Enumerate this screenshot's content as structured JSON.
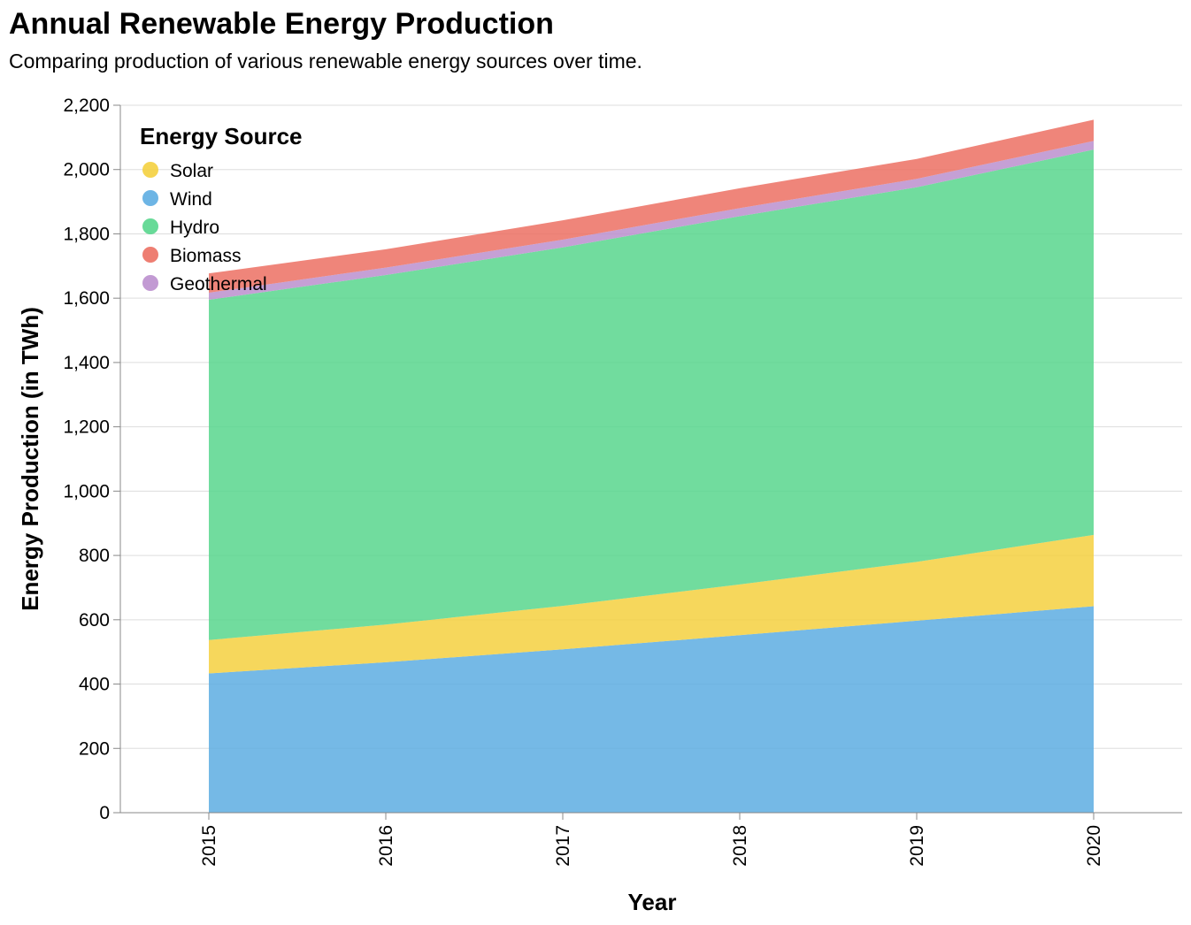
{
  "chart_data": {
    "type": "area",
    "stacked": true,
    "title": "Annual Renewable Energy Production",
    "subtitle": "Comparing production of various renewable energy sources over time.",
    "xlabel": "Year",
    "ylabel": "Energy Production (in TWh)",
    "x": [
      "2015",
      "2016",
      "2017",
      "2018",
      "2019",
      "2020"
    ],
    "ylim": [
      0,
      2200
    ],
    "yticks": [
      0,
      200,
      400,
      600,
      800,
      1000,
      1200,
      1400,
      1600,
      1800,
      2000,
      2200
    ],
    "ytick_labels": [
      "0",
      "200",
      "400",
      "600",
      "800",
      "1,000",
      "1,200",
      "1,400",
      "1,600",
      "1,800",
      "2,000",
      "2,200"
    ],
    "grid": true,
    "legend": {
      "title": "Energy Source",
      "placement": "top-left",
      "items": [
        "Solar",
        "Wind",
        "Hydro",
        "Biomass",
        "Geothermal"
      ]
    },
    "stack_order": [
      "Wind",
      "Solar",
      "Hydro",
      "Geothermal",
      "Biomass"
    ],
    "series": [
      {
        "name": "Wind",
        "color": "#5dade2",
        "values": [
          433,
          468,
          508,
          552,
          597,
          642
        ]
      },
      {
        "name": "Solar",
        "color": "#f4d03f",
        "values": [
          104,
          117,
          135,
          158,
          183,
          222
        ]
      },
      {
        "name": "Hydro",
        "color": "#58d68d",
        "values": [
          1058,
          1087,
          1115,
          1145,
          1165,
          1198
        ]
      },
      {
        "name": "Geothermal",
        "color": "#bb8fce",
        "values": [
          22,
          23,
          24,
          25,
          26,
          27
        ]
      },
      {
        "name": "Biomass",
        "color": "#ec7063",
        "values": [
          60,
          57,
          60,
          62,
          62,
          66
        ]
      }
    ]
  }
}
